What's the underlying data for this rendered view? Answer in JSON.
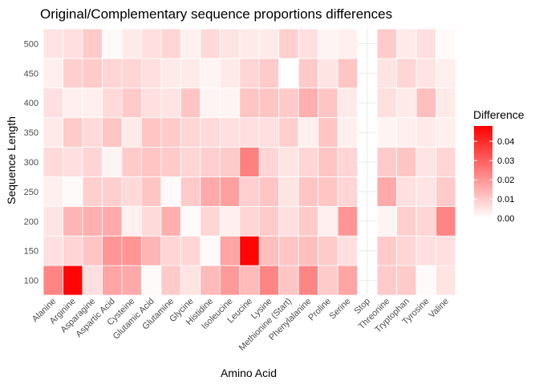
{
  "chart_data": {
    "type": "heatmap",
    "title": "Original/Complementary sequence proportions differences",
    "xlabel": "Amino Acid",
    "ylabel": "Sequence Length",
    "x_categories": [
      "Alanine",
      "Arginine",
      "Asparagine",
      "Aspartic Acid",
      "Cysteine",
      "Glutamic Acid",
      "Glutamine",
      "Glycine",
      "Histidine",
      "Isoleucine",
      "Leucine",
      "Lysine",
      "Methionine (Start)",
      "Phenylalanine",
      "Proline",
      "Serine",
      "Stop",
      "Threonine",
      "Tryptophan",
      "Tyrosine",
      "Valine"
    ],
    "y_categories": [
      "100",
      "150",
      "200",
      "250",
      "300",
      "350",
      "400",
      "450",
      "500"
    ],
    "values": [
      [
        0.023,
        0.047,
        0.006,
        0.017,
        0.016,
        0.001,
        0.01,
        0.005,
        0.013,
        0.019,
        0.013,
        0.023,
        0.011,
        0.023,
        0.01,
        0.017,
        null,
        0.01,
        0.01,
        0.001,
        0.005
      ],
      [
        0.006,
        0.008,
        0.011,
        0.02,
        0.02,
        0.014,
        0.008,
        0.008,
        0.001,
        0.017,
        0.047,
        0.012,
        0.011,
        0.012,
        0.01,
        0.006,
        null,
        0.01,
        0.008,
        0.006,
        0.006
      ],
      [
        0.005,
        0.014,
        0.015,
        0.016,
        0.003,
        0.007,
        0.015,
        0.001,
        0.008,
        0.003,
        0.008,
        0.01,
        0.006,
        0.01,
        0.003,
        0.02,
        null,
        0.002,
        0.009,
        0.008,
        0.023
      ],
      [
        0.003,
        0.001,
        0.009,
        0.009,
        0.007,
        0.011,
        0.001,
        0.01,
        0.016,
        0.018,
        0.009,
        0.011,
        0.005,
        0.011,
        0.011,
        0.008,
        null,
        0.016,
        0.006,
        0.005,
        0.01
      ],
      [
        0.007,
        0.006,
        0.008,
        0.002,
        0.01,
        0.011,
        0.01,
        0.008,
        0.009,
        0.01,
        0.024,
        0.008,
        0.005,
        0.008,
        0.011,
        0.008,
        null,
        0.01,
        0.011,
        0.005,
        0.008
      ],
      [
        0.004,
        0.01,
        0.007,
        0.011,
        0.004,
        0.011,
        0.01,
        0.008,
        0.007,
        0.006,
        0.006,
        0.006,
        0.009,
        0.003,
        0.011,
        0.003,
        null,
        0.002,
        0.003,
        0.004,
        0.003
      ],
      [
        0.006,
        0.003,
        0.003,
        0.007,
        0.01,
        0.006,
        0.005,
        0.011,
        0.002,
        0.002,
        0.011,
        0.011,
        0.01,
        0.015,
        0.011,
        0.004,
        null,
        0.006,
        0.004,
        0.012,
        0.004
      ],
      [
        0.003,
        0.009,
        0.01,
        0.008,
        0.008,
        0.006,
        0.004,
        0.004,
        0.002,
        0.004,
        0.008,
        0.01,
        0.0,
        0.01,
        0.005,
        0.011,
        null,
        0.005,
        0.008,
        0.005,
        0.003
      ],
      [
        0.005,
        0.006,
        0.01,
        0.001,
        0.004,
        0.006,
        0.008,
        0.003,
        0.007,
        0.005,
        0.004,
        0.004,
        0.009,
        0.006,
        0.002,
        0.003,
        null,
        0.01,
        0.004,
        0.006,
        0.001
      ]
    ],
    "color_scale": {
      "low": "#ffffff",
      "high": "#ff0000",
      "min": 0.0,
      "max": 0.048
    },
    "legend": {
      "title": "Difference",
      "position": "right",
      "ticks": [
        0.0,
        0.01,
        0.02,
        0.03,
        0.04
      ],
      "tick_labels": [
        "0.00",
        "0.01",
        "0.02",
        "0.03",
        "0.04"
      ]
    },
    "grid": true
  }
}
